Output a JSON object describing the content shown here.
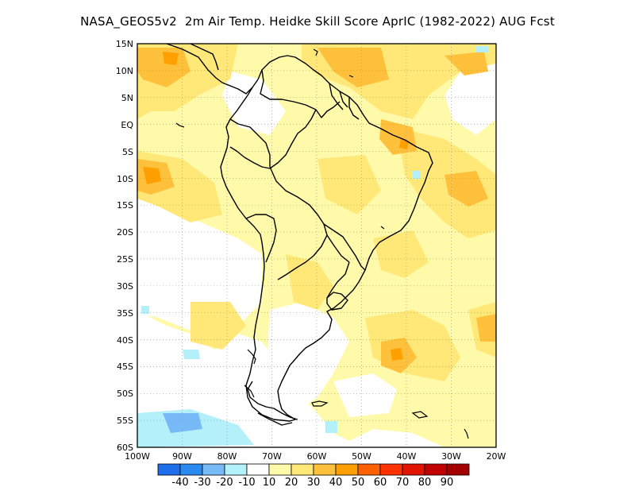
{
  "title": "NASA_GEOS5v2  2m Air Temp. Heidke Skill Score AprIC (1982-2022) AUG Fcst",
  "map": {
    "lat_labels": [
      "15N",
      "10N",
      "5N",
      "EQ",
      "5S",
      "10S",
      "15S",
      "20S",
      "25S",
      "30S",
      "35S",
      "40S",
      "45S",
      "50S",
      "55S",
      "60S"
    ],
    "lon_labels": [
      "100W",
      "90W",
      "80W",
      "70W",
      "60W",
      "50W",
      "40W",
      "30W",
      "20W"
    ],
    "lon_range": [
      -100,
      -20
    ],
    "lat_range": [
      -60,
      15
    ],
    "grid": "dotted"
  },
  "colorbar": {
    "labels": [
      "-40",
      "-30",
      "-20",
      "-10",
      "10",
      "20",
      "30",
      "40",
      "50",
      "60",
      "70",
      "80",
      "90"
    ],
    "colors": [
      "#1e6eeb",
      "#2a8af0",
      "#78b9f7",
      "#b4f0fa",
      "#ffffff",
      "#fffaaa",
      "#ffe878",
      "#ffc03c",
      "#ffa000",
      "#ff6000",
      "#ff3200",
      "#e11400",
      "#c00000",
      "#a50000"
    ]
  }
}
